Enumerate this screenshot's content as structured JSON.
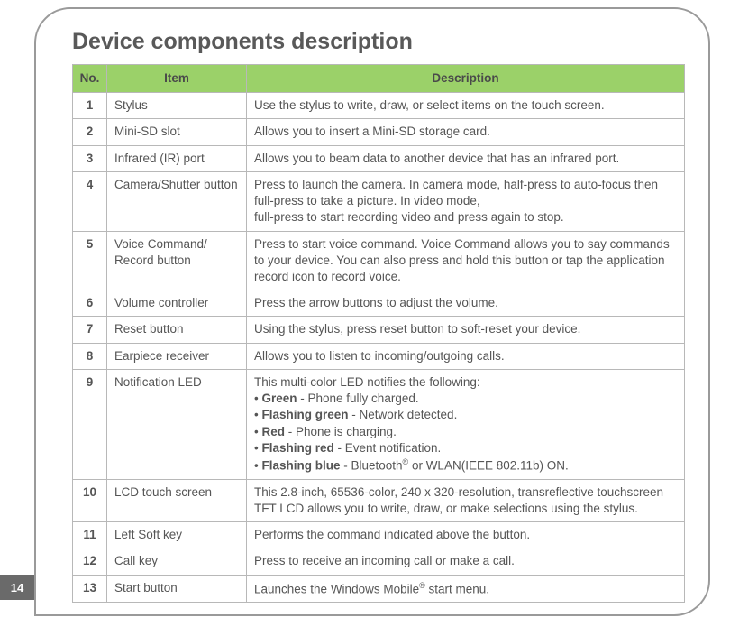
{
  "page_number": "14",
  "title": "Device components description",
  "headers": {
    "no": "No.",
    "item": "Item",
    "desc": "Description"
  },
  "colors": {
    "header_bg": "#9bd169",
    "border": "#b8b8b8",
    "text": "#555555",
    "title": "#595959",
    "tab_bg": "#6a6a6a"
  },
  "rows": [
    {
      "no": "1",
      "item": "Stylus",
      "desc": "Use the stylus to write, draw, or select items on the touch screen."
    },
    {
      "no": "2",
      "item": "Mini-SD slot",
      "desc": "Allows you to insert a Mini-SD storage card."
    },
    {
      "no": "3",
      "item": "Infrared (IR) port",
      "desc": "Allows you to beam data to another device that has an infrared port."
    },
    {
      "no": "4",
      "item": "Camera/Shutter button",
      "desc": "Press to launch the camera. In camera mode, half-press to auto-focus then full-press to take a picture. In video mode,\nfull-press to start recording video and press again to stop."
    },
    {
      "no": "5",
      "item": "Voice Command/\nRecord button",
      "desc": "Press to start voice command. Voice Command allows you to say commands to your device. You can also press and hold this button or tap the application record icon to record voice."
    },
    {
      "no": "6",
      "item": "Volume controller",
      "desc": "Press the arrow buttons to adjust the volume."
    },
    {
      "no": "7",
      "item": "Reset button",
      "desc": "Using the stylus, press reset button to soft-reset your device."
    },
    {
      "no": "8",
      "item": "Earpiece receiver",
      "desc": "Allows you to listen to incoming/outgoing calls."
    },
    {
      "no": "9",
      "item": "Notification LED",
      "desc_intro": "This multi-color LED notifies the following:",
      "bullets": [
        {
          "bold": "Green",
          "rest": " - Phone fully charged."
        },
        {
          "bold": "Flashing green",
          "rest": " - Network detected."
        },
        {
          "bold": "Red",
          "rest": " - Phone is charging."
        },
        {
          "bold": "Flashing red",
          "rest": " - Event notification."
        },
        {
          "bold": "Flashing blue",
          "rest": " - Bluetooth® or WLAN(IEEE 802.11b) ON."
        }
      ]
    },
    {
      "no": "10",
      "item": "LCD touch screen",
      "desc": "This 2.8-inch, 65536-color, 240 x 320-resolution, transreflective touchscreen TFT LCD allows you to write, draw, or make selections using the stylus."
    },
    {
      "no": "11",
      "item": "Left Soft key",
      "desc": "Performs the command indicated above the button."
    },
    {
      "no": "12",
      "item": "Call key",
      "desc": "Press to receive an incoming call or make a call."
    },
    {
      "no": "13",
      "item": "Start button",
      "desc": "Launches the Windows Mobile® start menu."
    }
  ]
}
